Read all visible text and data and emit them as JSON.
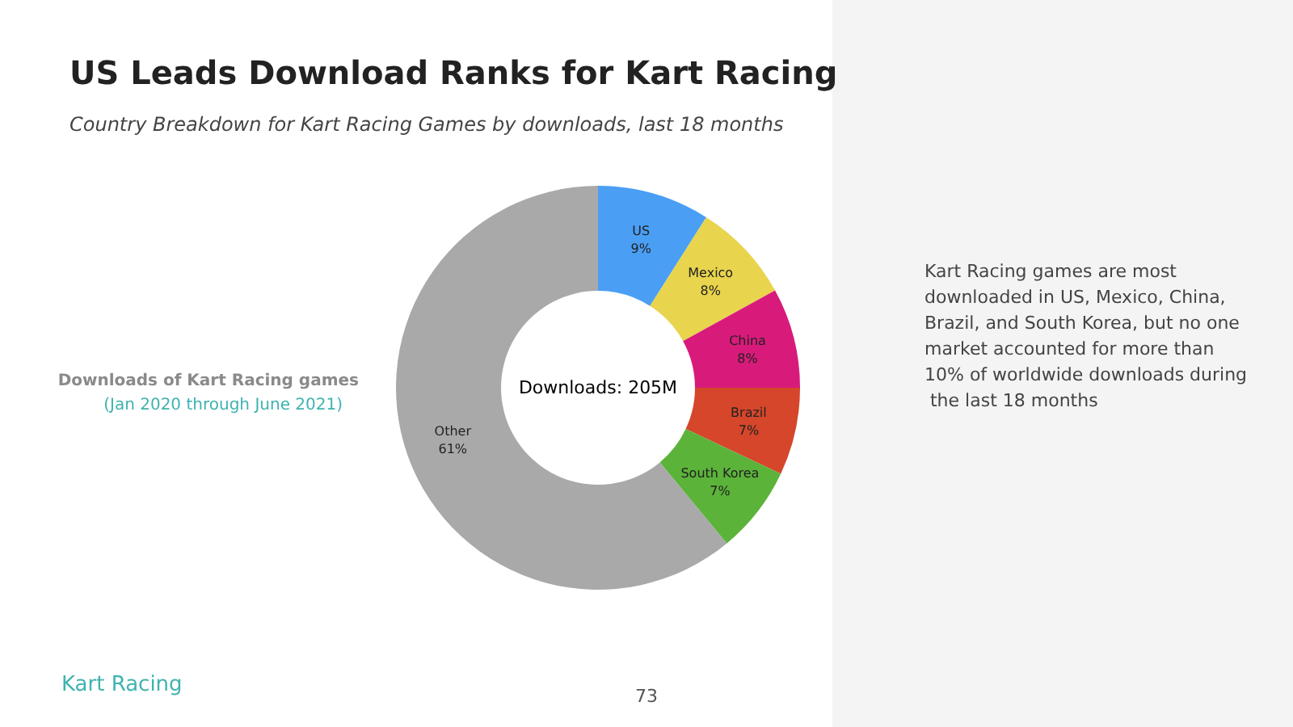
{
  "chart_data": {
    "type": "donut",
    "title": "US Leads Download Ranks for Kart Racing",
    "subtitle": "Country Breakdown for Kart Racing Games by downloads, last 18 months",
    "categories": [
      "US",
      "Mexico",
      "China",
      "Brazil",
      "South Korea",
      "Other"
    ],
    "values": [
      9,
      8,
      8,
      7,
      7,
      61
    ],
    "value_labels": [
      "9%",
      "8%",
      "8%",
      "7%",
      "7%",
      "61%"
    ],
    "colors": [
      "#4a9ff5",
      "#e8d44d",
      "#d81b7a",
      "#d5462b",
      "#5cb33a",
      "#a9a9a9"
    ],
    "legend": false,
    "annotations": [
      "Downloads: 205M",
      "Downloads of Kart Racing games",
      "(Jan 2020 through June 2021)",
      "Kart Racing games are most downloaded in US, Mexico, China, Brazil, and South Korea, but no one market accounted for more than 10% of worldwide downloads during the last 18 months",
      "Kart Racing",
      "73"
    ]
  }
}
